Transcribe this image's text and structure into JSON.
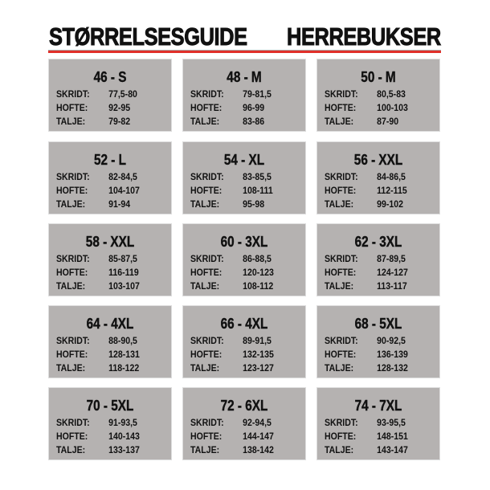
{
  "header": {
    "title_left": "STØRRELSESGUIDE",
    "title_right": "HERREBUKSER",
    "accent_color": "#e0302a"
  },
  "labels": {
    "skridt": "SKRIDT:",
    "hofte": "HOFTE:",
    "talje": "TALJE:"
  },
  "sizes": [
    {
      "size": "46 - S",
      "skridt": "77,5-80",
      "hofte": "92-95",
      "talje": "79-82"
    },
    {
      "size": "48 - M",
      "skridt": "79-81,5",
      "hofte": "96-99",
      "talje": "83-86"
    },
    {
      "size": "50 - M",
      "skridt": "80,5-83",
      "hofte": "100-103",
      "talje": "87-90"
    },
    {
      "size": "52 - L",
      "skridt": "82-84,5",
      "hofte": "104-107",
      "talje": "91-94"
    },
    {
      "size": "54 - XL",
      "skridt": "83-85,5",
      "hofte": "108-111",
      "talje": "95-98"
    },
    {
      "size": "56 - XXL",
      "skridt": "84-86,5",
      "hofte": "112-115",
      "talje": "99-102"
    },
    {
      "size": "58 - XXL",
      "skridt": "85-87,5",
      "hofte": "116-119",
      "talje": "103-107"
    },
    {
      "size": "60 - 3XL",
      "skridt": "86-88,5",
      "hofte": "120-123",
      "talje": "108-112"
    },
    {
      "size": "62 - 3XL",
      "skridt": "87-89,5",
      "hofte": "124-127",
      "talje": "113-117"
    },
    {
      "size": "64 - 4XL",
      "skridt": "88-90,5",
      "hofte": "128-131",
      "talje": "118-122"
    },
    {
      "size": "66 - 4XL",
      "skridt": "89-91,5",
      "hofte": "132-135",
      "talje": "123-127"
    },
    {
      "size": "68 - 5XL",
      "skridt": "90-92,5",
      "hofte": "136-139",
      "talje": "128-132"
    },
    {
      "size": "70 - 5XL",
      "skridt": "91-93,5",
      "hofte": "140-143",
      "talje": "133-137"
    },
    {
      "size": "72 - 6XL",
      "skridt": "92-94,5",
      "hofte": "144-147",
      "talje": "138-142"
    },
    {
      "size": "74 - 7XL",
      "skridt": "93-95,5",
      "hofte": "148-151",
      "talje": "143-147"
    }
  ]
}
